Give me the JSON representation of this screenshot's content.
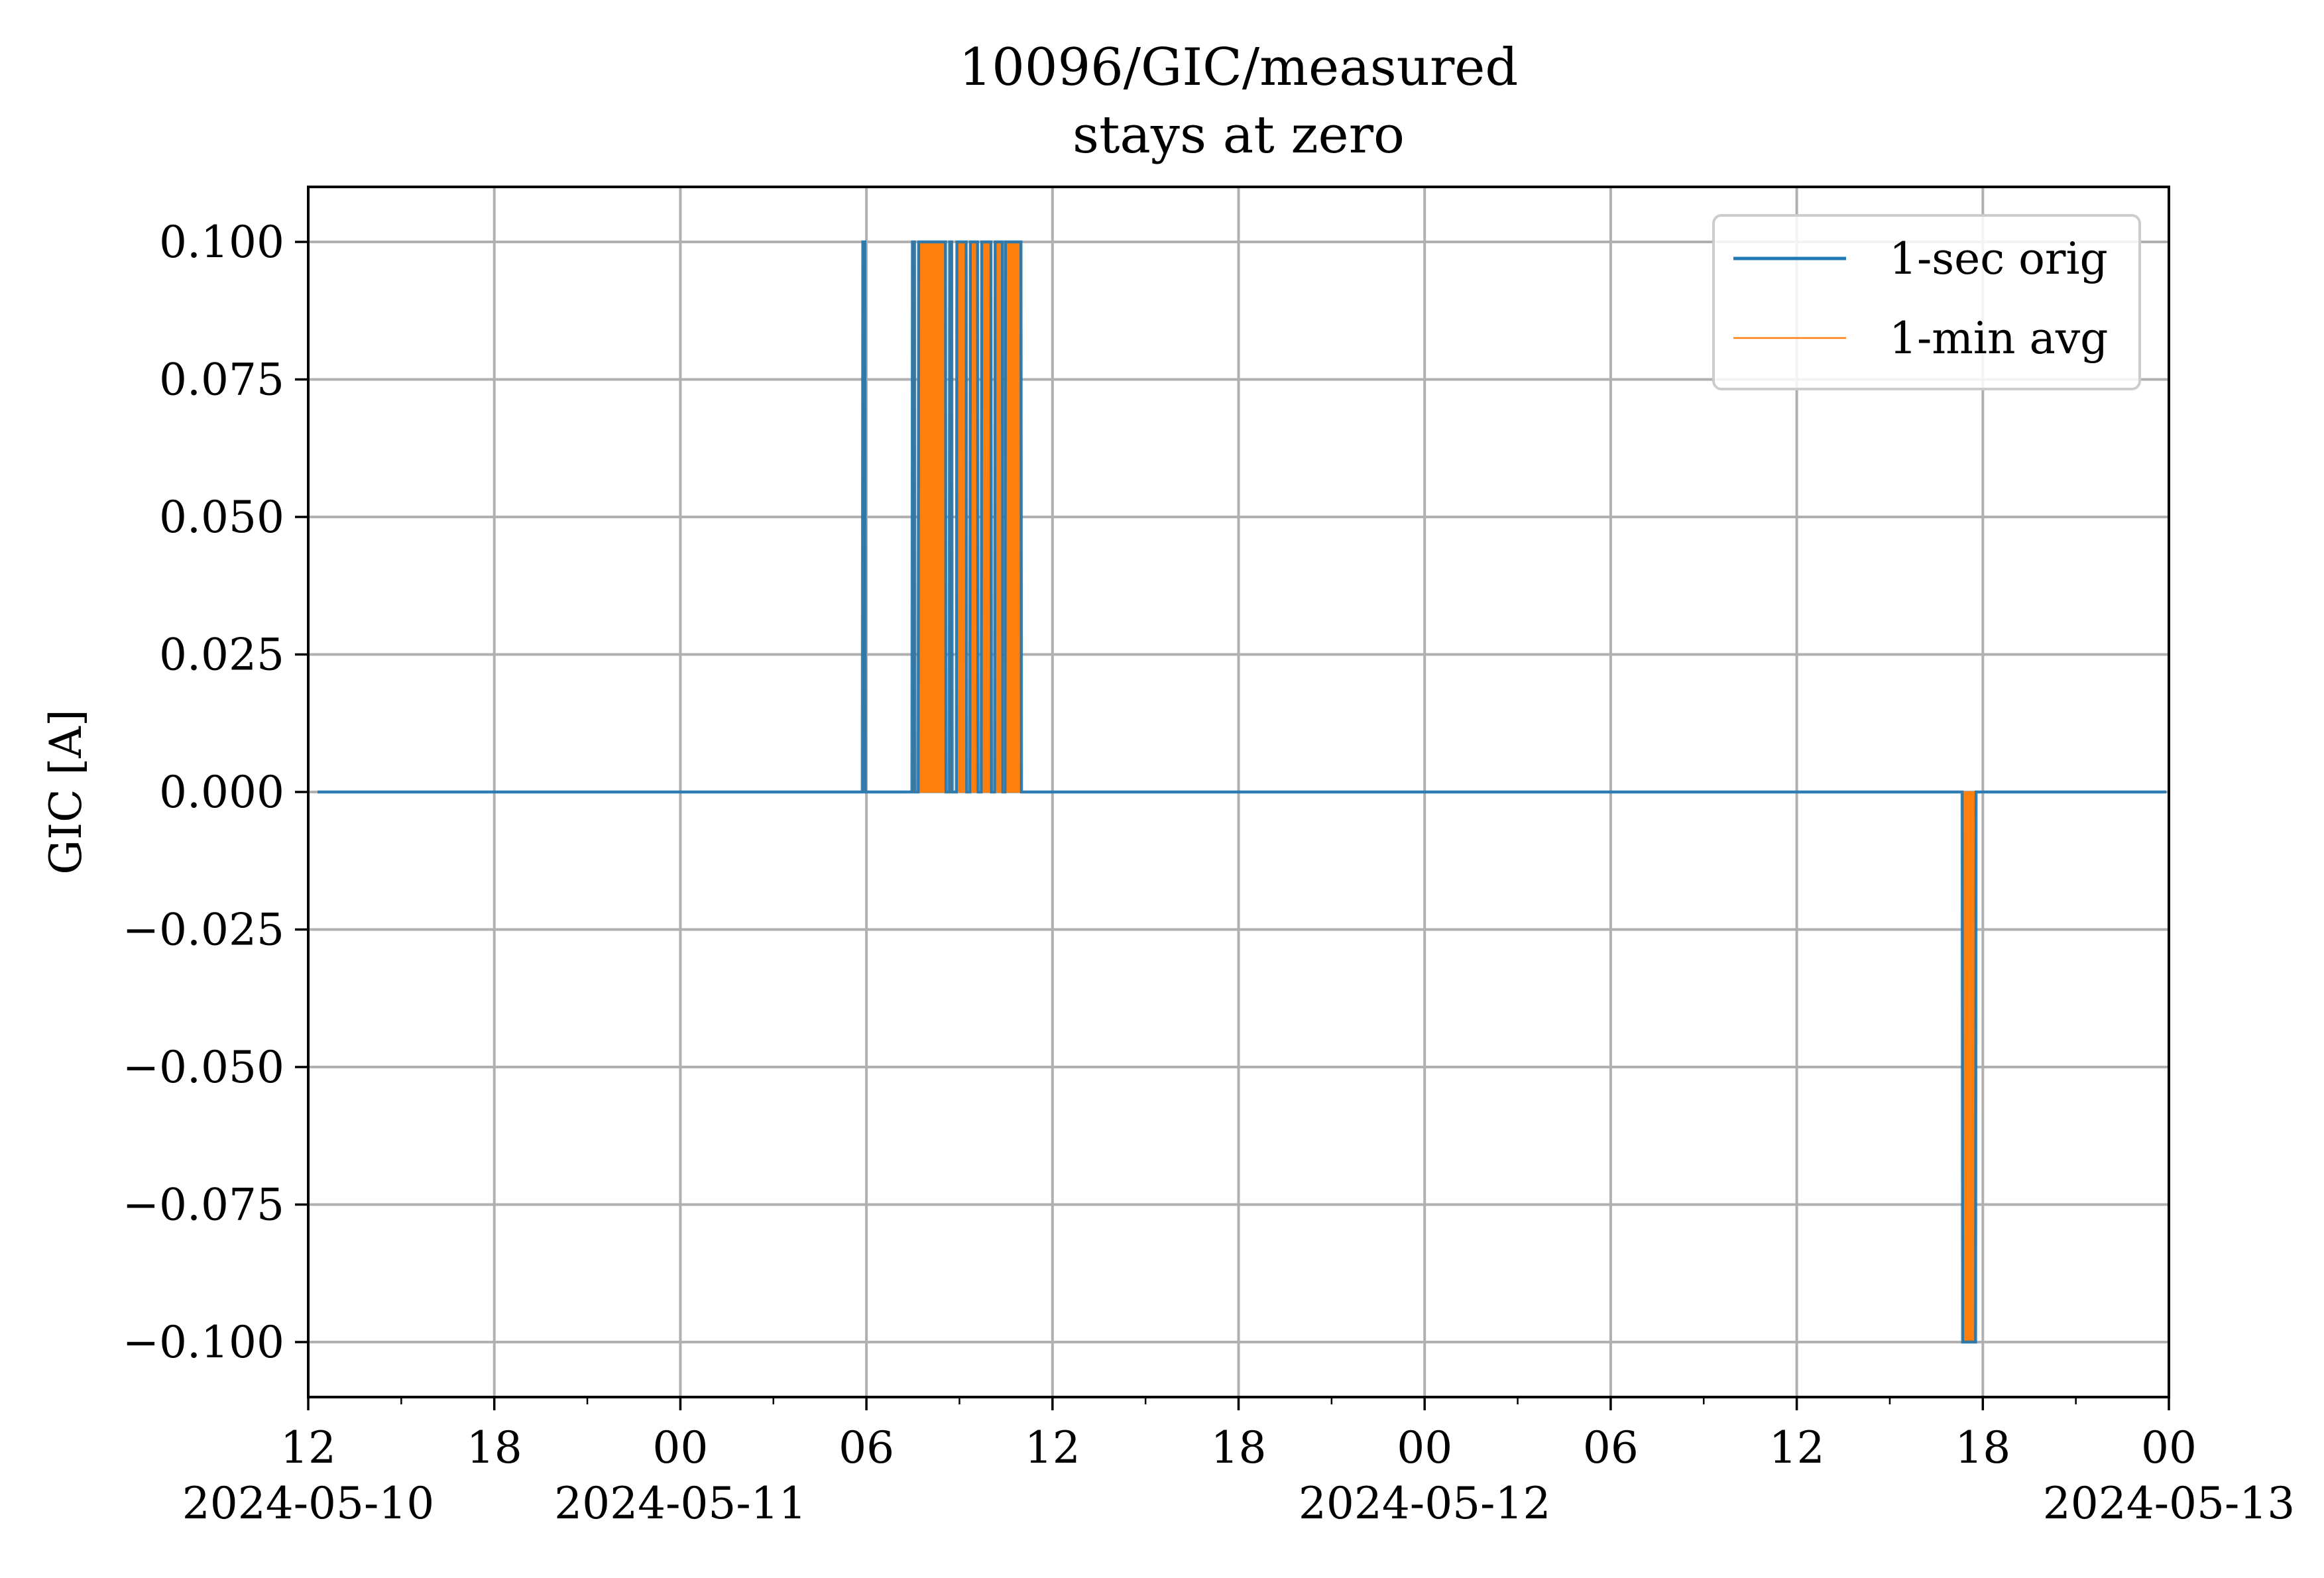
{
  "chart_data": {
    "type": "line",
    "title": "10096/GIC/measured",
    "subtitle": "stays at zero",
    "xlabel": "",
    "ylabel": "GIC [A]",
    "xlim": [
      "2024-05-10T12:00",
      "2024-05-13T00:00"
    ],
    "ylim": [
      -0.11,
      0.11
    ],
    "grid": true,
    "legend": {
      "placement": "top-right",
      "entries": [
        "1-sec orig",
        "1-min avg"
      ]
    },
    "x_ticks": [
      {
        "at": "2024-05-10T12:00",
        "label": "12",
        "date_label": "2024-05-10"
      },
      {
        "at": "2024-05-10T18:00",
        "label": "18",
        "date_label": ""
      },
      {
        "at": "2024-05-11T00:00",
        "label": "00",
        "date_label": "2024-05-11"
      },
      {
        "at": "2024-05-11T06:00",
        "label": "06",
        "date_label": ""
      },
      {
        "at": "2024-05-11T12:00",
        "label": "12",
        "date_label": ""
      },
      {
        "at": "2024-05-11T18:00",
        "label": "18",
        "date_label": ""
      },
      {
        "at": "2024-05-12T00:00",
        "label": "00",
        "date_label": "2024-05-12"
      },
      {
        "at": "2024-05-12T06:00",
        "label": "06",
        "date_label": ""
      },
      {
        "at": "2024-05-12T12:00",
        "label": "12",
        "date_label": ""
      },
      {
        "at": "2024-05-12T18:00",
        "label": "18",
        "date_label": ""
      },
      {
        "at": "2024-05-13T00:00",
        "label": "00",
        "date_label": "2024-05-13"
      }
    ],
    "x_minor_ticks": [
      "2024-05-10T15:00",
      "2024-05-10T21:00",
      "2024-05-11T03:00",
      "2024-05-11T09:00",
      "2024-05-11T15:00",
      "2024-05-11T21:00",
      "2024-05-12T03:00",
      "2024-05-12T09:00",
      "2024-05-12T15:00",
      "2024-05-12T21:00"
    ],
    "y_ticks": [
      {
        "value": 0.1,
        "label": "0.100"
      },
      {
        "value": 0.075,
        "label": "0.075"
      },
      {
        "value": 0.05,
        "label": "0.050"
      },
      {
        "value": 0.025,
        "label": "0.025"
      },
      {
        "value": 0.0,
        "label": "0.000"
      },
      {
        "value": -0.025,
        "label": "−0.025"
      },
      {
        "value": -0.05,
        "label": "−0.050"
      },
      {
        "value": -0.075,
        "label": "−0.075"
      },
      {
        "value": -0.1,
        "label": "−0.100"
      }
    ],
    "series": [
      {
        "name": "1-sec orig",
        "color": "#1f77b4",
        "points": [
          [
            "2024-05-10T12:18",
            0.0
          ],
          [
            "2024-05-11T05:52",
            0.0
          ],
          [
            "2024-05-11T05:53",
            0.1
          ],
          [
            "2024-05-11T05:57",
            0.1
          ],
          [
            "2024-05-11T05:58",
            0.0
          ],
          [
            "2024-05-11T07:28",
            0.0
          ],
          [
            "2024-05-11T07:29",
            0.1
          ],
          [
            "2024-05-11T07:33",
            0.1
          ],
          [
            "2024-05-11T07:34",
            0.0
          ],
          [
            "2024-05-11T07:40",
            0.0
          ],
          [
            "2024-05-11T07:41",
            0.1
          ],
          [
            "2024-05-11T08:33",
            0.1
          ],
          [
            "2024-05-11T08:34",
            0.0
          ],
          [
            "2024-05-11T08:40",
            0.0
          ],
          [
            "2024-05-11T08:41",
            0.1
          ],
          [
            "2024-05-11T08:45",
            0.1
          ],
          [
            "2024-05-11T08:46",
            0.0
          ],
          [
            "2024-05-11T08:54",
            0.0
          ],
          [
            "2024-05-11T08:55",
            0.1
          ],
          [
            "2024-05-11T09:13",
            0.1
          ],
          [
            "2024-05-11T09:14",
            0.0
          ],
          [
            "2024-05-11T09:20",
            0.0
          ],
          [
            "2024-05-11T09:21",
            0.1
          ],
          [
            "2024-05-11T09:35",
            0.1
          ],
          [
            "2024-05-11T09:36",
            0.0
          ],
          [
            "2024-05-11T09:42",
            0.0
          ],
          [
            "2024-05-11T09:43",
            0.1
          ],
          [
            "2024-05-11T10:01",
            0.1
          ],
          [
            "2024-05-11T10:02",
            0.0
          ],
          [
            "2024-05-11T10:08",
            0.0
          ],
          [
            "2024-05-11T10:09",
            0.1
          ],
          [
            "2024-05-11T10:23",
            0.1
          ],
          [
            "2024-05-11T10:24",
            0.0
          ],
          [
            "2024-05-11T10:28",
            0.0
          ],
          [
            "2024-05-11T10:29",
            0.1
          ],
          [
            "2024-05-11T10:59",
            0.1
          ],
          [
            "2024-05-11T11:00",
            0.0
          ],
          [
            "2024-05-12T17:20",
            0.0
          ],
          [
            "2024-05-12T17:21",
            -0.1
          ],
          [
            "2024-05-12T17:46",
            -0.1
          ],
          [
            "2024-05-12T17:47",
            0.0
          ],
          [
            "2024-05-12T23:55",
            0.0
          ]
        ]
      },
      {
        "name": "1-min avg",
        "color": "#ff7f0e",
        "blocks": [
          {
            "start": "2024-05-11T05:53",
            "end": "2024-05-11T05:57",
            "value": 0.1
          },
          {
            "start": "2024-05-11T07:29",
            "end": "2024-05-11T07:33",
            "value": 0.1
          },
          {
            "start": "2024-05-11T07:41",
            "end": "2024-05-11T08:33",
            "value": 0.1
          },
          {
            "start": "2024-05-11T08:41",
            "end": "2024-05-11T08:45",
            "value": 0.1
          },
          {
            "start": "2024-05-11T08:55",
            "end": "2024-05-11T09:13",
            "value": 0.1
          },
          {
            "start": "2024-05-11T09:21",
            "end": "2024-05-11T09:35",
            "value": 0.1
          },
          {
            "start": "2024-05-11T09:43",
            "end": "2024-05-11T10:01",
            "value": 0.1
          },
          {
            "start": "2024-05-11T10:09",
            "end": "2024-05-11T10:23",
            "value": 0.1
          },
          {
            "start": "2024-05-11T10:29",
            "end": "2024-05-11T10:59",
            "value": 0.1
          },
          {
            "start": "2024-05-12T17:21",
            "end": "2024-05-12T17:46",
            "value": -0.1
          }
        ]
      }
    ]
  }
}
